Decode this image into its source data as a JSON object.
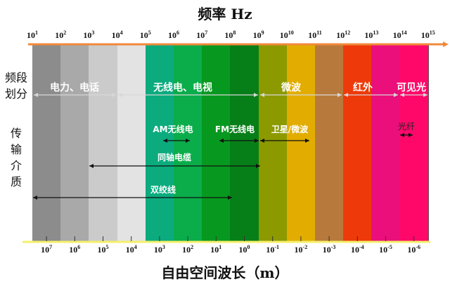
{
  "title_top": "频率 Hz",
  "title_bottom": "自由空间波长（m）",
  "side_labels": {
    "band": [
      "频段",
      "划分"
    ],
    "medium": [
      "传",
      "输",
      "介",
      "质"
    ]
  },
  "frequency_exponents": [
    "1",
    "2",
    "3",
    "4",
    "5",
    "6",
    "7",
    "8",
    "9",
    "10",
    "11",
    "12",
    "13",
    "14",
    "15"
  ],
  "wavelength_exponents": [
    "7",
    "6",
    "5",
    "4",
    "3",
    "2",
    "1",
    "0",
    "-1",
    "-2",
    "-3",
    "-4",
    "-5",
    "-6"
  ],
  "column_colors": [
    "#8c8c8c",
    "#a9a9a9",
    "#cbcbcb",
    "#e3e3e3",
    "#0bab7e",
    "#0aad4a",
    "#07991f",
    "#067f18",
    "#8c9a00",
    "#e2ad00",
    "#b87a3c",
    "#ee3a0a",
    "#ea0f7a",
    "#ff086a"
  ],
  "top_axis_color": "#f08a3c",
  "bottom_axis_color": "#f5ef6a",
  "bands": [
    "电力、电话",
    "无线电、电视",
    "微波",
    "红外",
    "可见光"
  ],
  "media": {
    "am": "AM无线电",
    "fm": "FM无线电",
    "sat": "卫星/微波",
    "fiber": "光纤",
    "coax": "同轴电缆",
    "twisted": "双绞线"
  }
}
